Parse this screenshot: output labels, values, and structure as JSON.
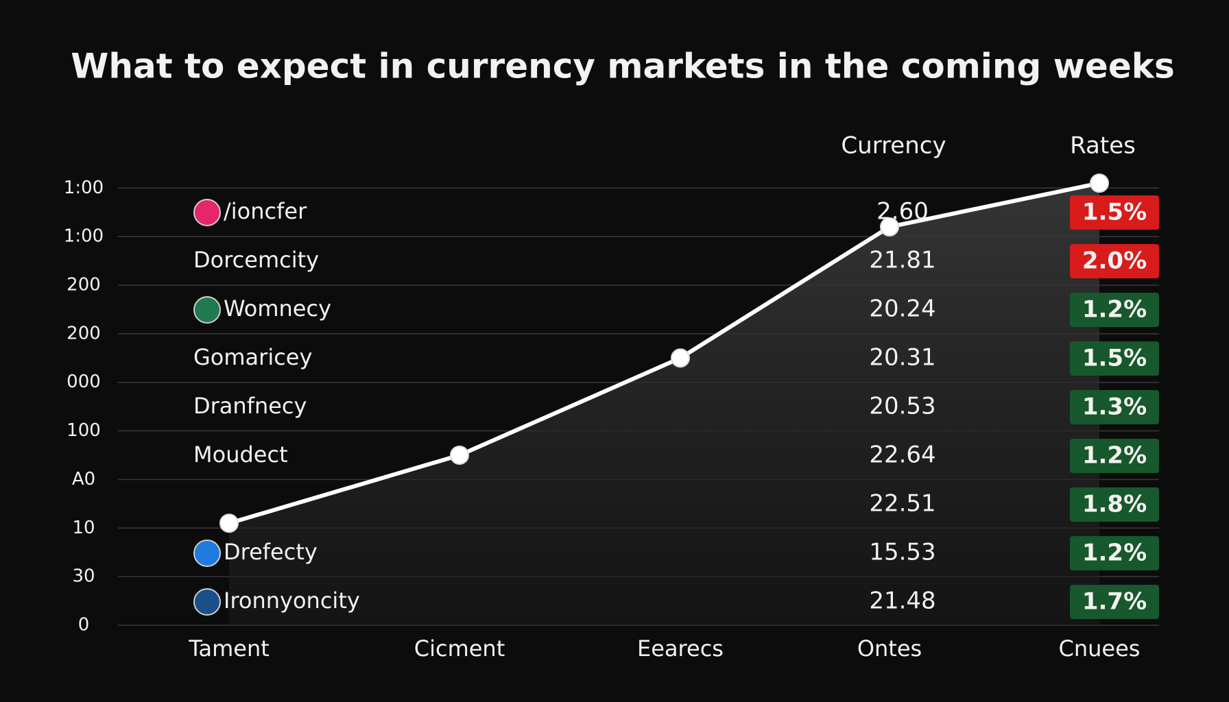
{
  "chart_data": {
    "type": "line",
    "title": "What to expect in currency markets in the coming weeks",
    "categories": [
      "Tament",
      "Cicment",
      "Eearecs",
      "Ontes",
      "Cnuees"
    ],
    "values": [
      2.1,
      3.5,
      5.5,
      8.2,
      9.1
    ],
    "color": "#ffffff",
    "ylim": [
      0,
      9.2
    ],
    "yticks": [
      {
        "value": 0,
        "label": "0"
      },
      {
        "value": 1,
        "label": "30"
      },
      {
        "value": 2,
        "label": "10"
      },
      {
        "value": 3,
        "label": "A0"
      },
      {
        "value": 4,
        "label": "100"
      },
      {
        "value": 5,
        "label": "000"
      },
      {
        "value": 6,
        "label": "200"
      },
      {
        "value": 7,
        "label": "200"
      },
      {
        "value": 8,
        "label": "1:00"
      },
      {
        "value": 9,
        "label": "1:00"
      }
    ],
    "grid": true,
    "table": {
      "headers": [
        "Currency",
        "Rates"
      ],
      "rows": [
        {
          "name": "/ioncfer",
          "value": "2.60",
          "rate": "1.5%",
          "rate_color": "#d81b1b",
          "icon": "#e8246a"
        },
        {
          "name": "Dorcemcity",
          "value": "21.81",
          "rate": "2.0%",
          "rate_color": "#d81b1b"
        },
        {
          "name": "Womnecy",
          "value": "20.24",
          "rate": "1.2%",
          "rate_color": "#17582c",
          "icon": "#1f7a50"
        },
        {
          "name": "Gomaricey",
          "value": "20.31",
          "rate": "1.5%",
          "rate_color": "#17582c"
        },
        {
          "name": "Dranfnecy",
          "value": "20.53",
          "rate": "1.3%",
          "rate_color": "#17582c"
        },
        {
          "name": "Moudect",
          "value": "22.64",
          "rate": "1.2%",
          "rate_color": "#17582c"
        },
        {
          "name": null,
          "value": "22.51",
          "rate": "1.8%",
          "rate_color": "#17582c"
        },
        {
          "name": "Drefecty",
          "value": "15.53",
          "rate": "1.2%",
          "rate_color": "#17582c",
          "icon": "#1e7be0"
        },
        {
          "name": "Ironnyoncity",
          "value": "21.48",
          "rate": "1.7%",
          "rate_color": "#17582c",
          "icon": "#1b4f8a"
        }
      ]
    }
  }
}
